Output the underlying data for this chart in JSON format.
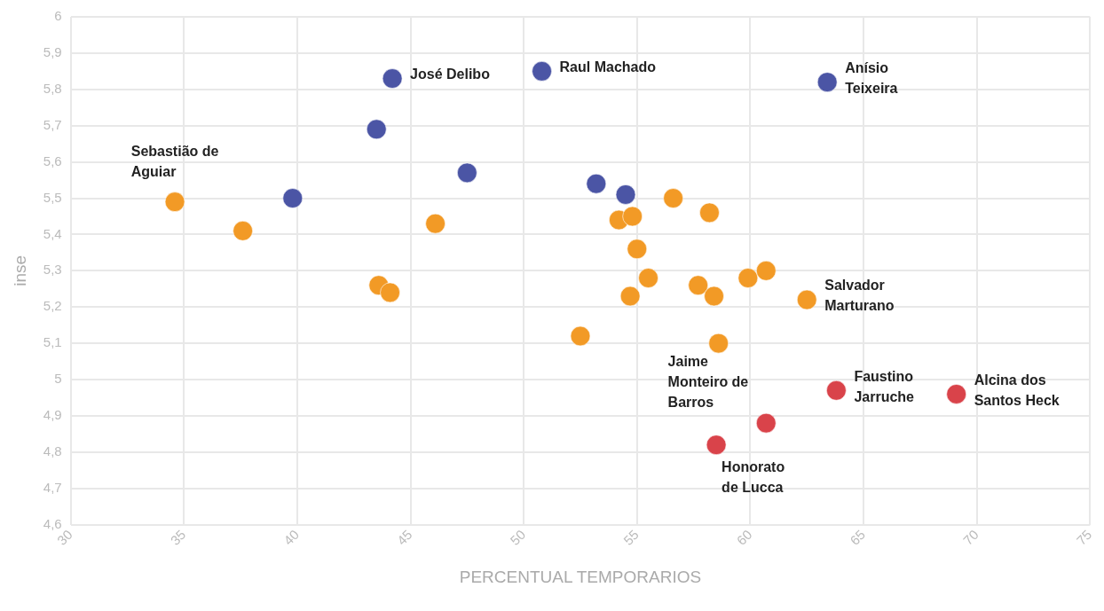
{
  "chart_data": {
    "type": "scatter",
    "xlabel": "PERCENTUAL TEMPORARIOS",
    "ylabel": "inse",
    "xlim": [
      30,
      75
    ],
    "xticks": [
      30,
      35,
      40,
      45,
      50,
      55,
      60,
      65,
      70,
      75
    ],
    "ylim": [
      4.6,
      6
    ],
    "yticks": [
      {
        "value": 4.6,
        "label": "4,6"
      },
      {
        "value": 4.7,
        "label": "4,7"
      },
      {
        "value": 4.8,
        "label": "4,8"
      },
      {
        "value": 4.9,
        "label": "4,9"
      },
      {
        "value": 5,
        "label": "5"
      },
      {
        "value": 5.1,
        "label": "5,1"
      },
      {
        "value": 5.2,
        "label": "5,2"
      },
      {
        "value": 5.3,
        "label": "5,3"
      },
      {
        "value": 5.4,
        "label": "5,4"
      },
      {
        "value": 5.5,
        "label": "5,5"
      },
      {
        "value": 5.6,
        "label": "5,6"
      },
      {
        "value": 5.7,
        "label": "5,7"
      },
      {
        "value": 5.8,
        "label": "5,8"
      },
      {
        "value": 5.9,
        "label": "5,9"
      },
      {
        "value": 6,
        "label": "6"
      }
    ],
    "grid": true,
    "legend": false,
    "marker": "circle",
    "series": [
      {
        "color": "#4b55a5",
        "x": [
          44.2,
          50.8,
          63.4,
          43.5,
          47.5,
          39.8,
          53.2,
          54.5
        ],
        "values": [
          5.83,
          5.85,
          5.82,
          5.69,
          5.57,
          5.5,
          5.54,
          5.51
        ]
      },
      {
        "color": "#f29a26",
        "x": [
          34.6,
          37.6,
          46.1,
          43.6,
          44.1,
          52.5,
          54.2,
          54.8,
          56.6,
          58.2,
          55,
          55.5,
          54.7,
          57.7,
          58.4,
          58.6,
          59.9,
          60.7,
          62.5
        ],
        "values": [
          5.49,
          5.41,
          5.43,
          5.26,
          5.24,
          5.12,
          5.44,
          5.45,
          5.5,
          5.46,
          5.36,
          5.28,
          5.23,
          5.26,
          5.23,
          5.1,
          5.28,
          5.3,
          5.22
        ]
      },
      {
        "color": "#d9434a",
        "x": [
          58.5,
          60.7,
          63.8,
          69.1
        ],
        "values": [
          4.82,
          4.88,
          4.97,
          4.96
        ]
      }
    ],
    "annotations": [
      {
        "text": "José Delibo",
        "x": 44.2,
        "y": 5.83
      },
      {
        "text": "Raul Machado",
        "x": 50.8,
        "y": 5.85
      },
      {
        "text": "Anísio\nTeixeira",
        "x": 63.4,
        "y": 5.82
      },
      {
        "text": "Sebastião de\nAguiar",
        "x": 34.6,
        "y": 5.49
      },
      {
        "text": "Salvador\nMarturano",
        "x": 62.5,
        "y": 5.22
      },
      {
        "text": "Faustino\nJarruche",
        "x": 63.8,
        "y": 4.97
      },
      {
        "text": "Alcina dos\nSantos Heck",
        "x": 69.1,
        "y": 4.96
      },
      {
        "text": "Jaime\nMonteiro de\nBarros",
        "x": 60.7,
        "y": 4.88
      },
      {
        "text": "Honorato\nde Lucca",
        "x": 58.5,
        "y": 4.82
      }
    ]
  }
}
